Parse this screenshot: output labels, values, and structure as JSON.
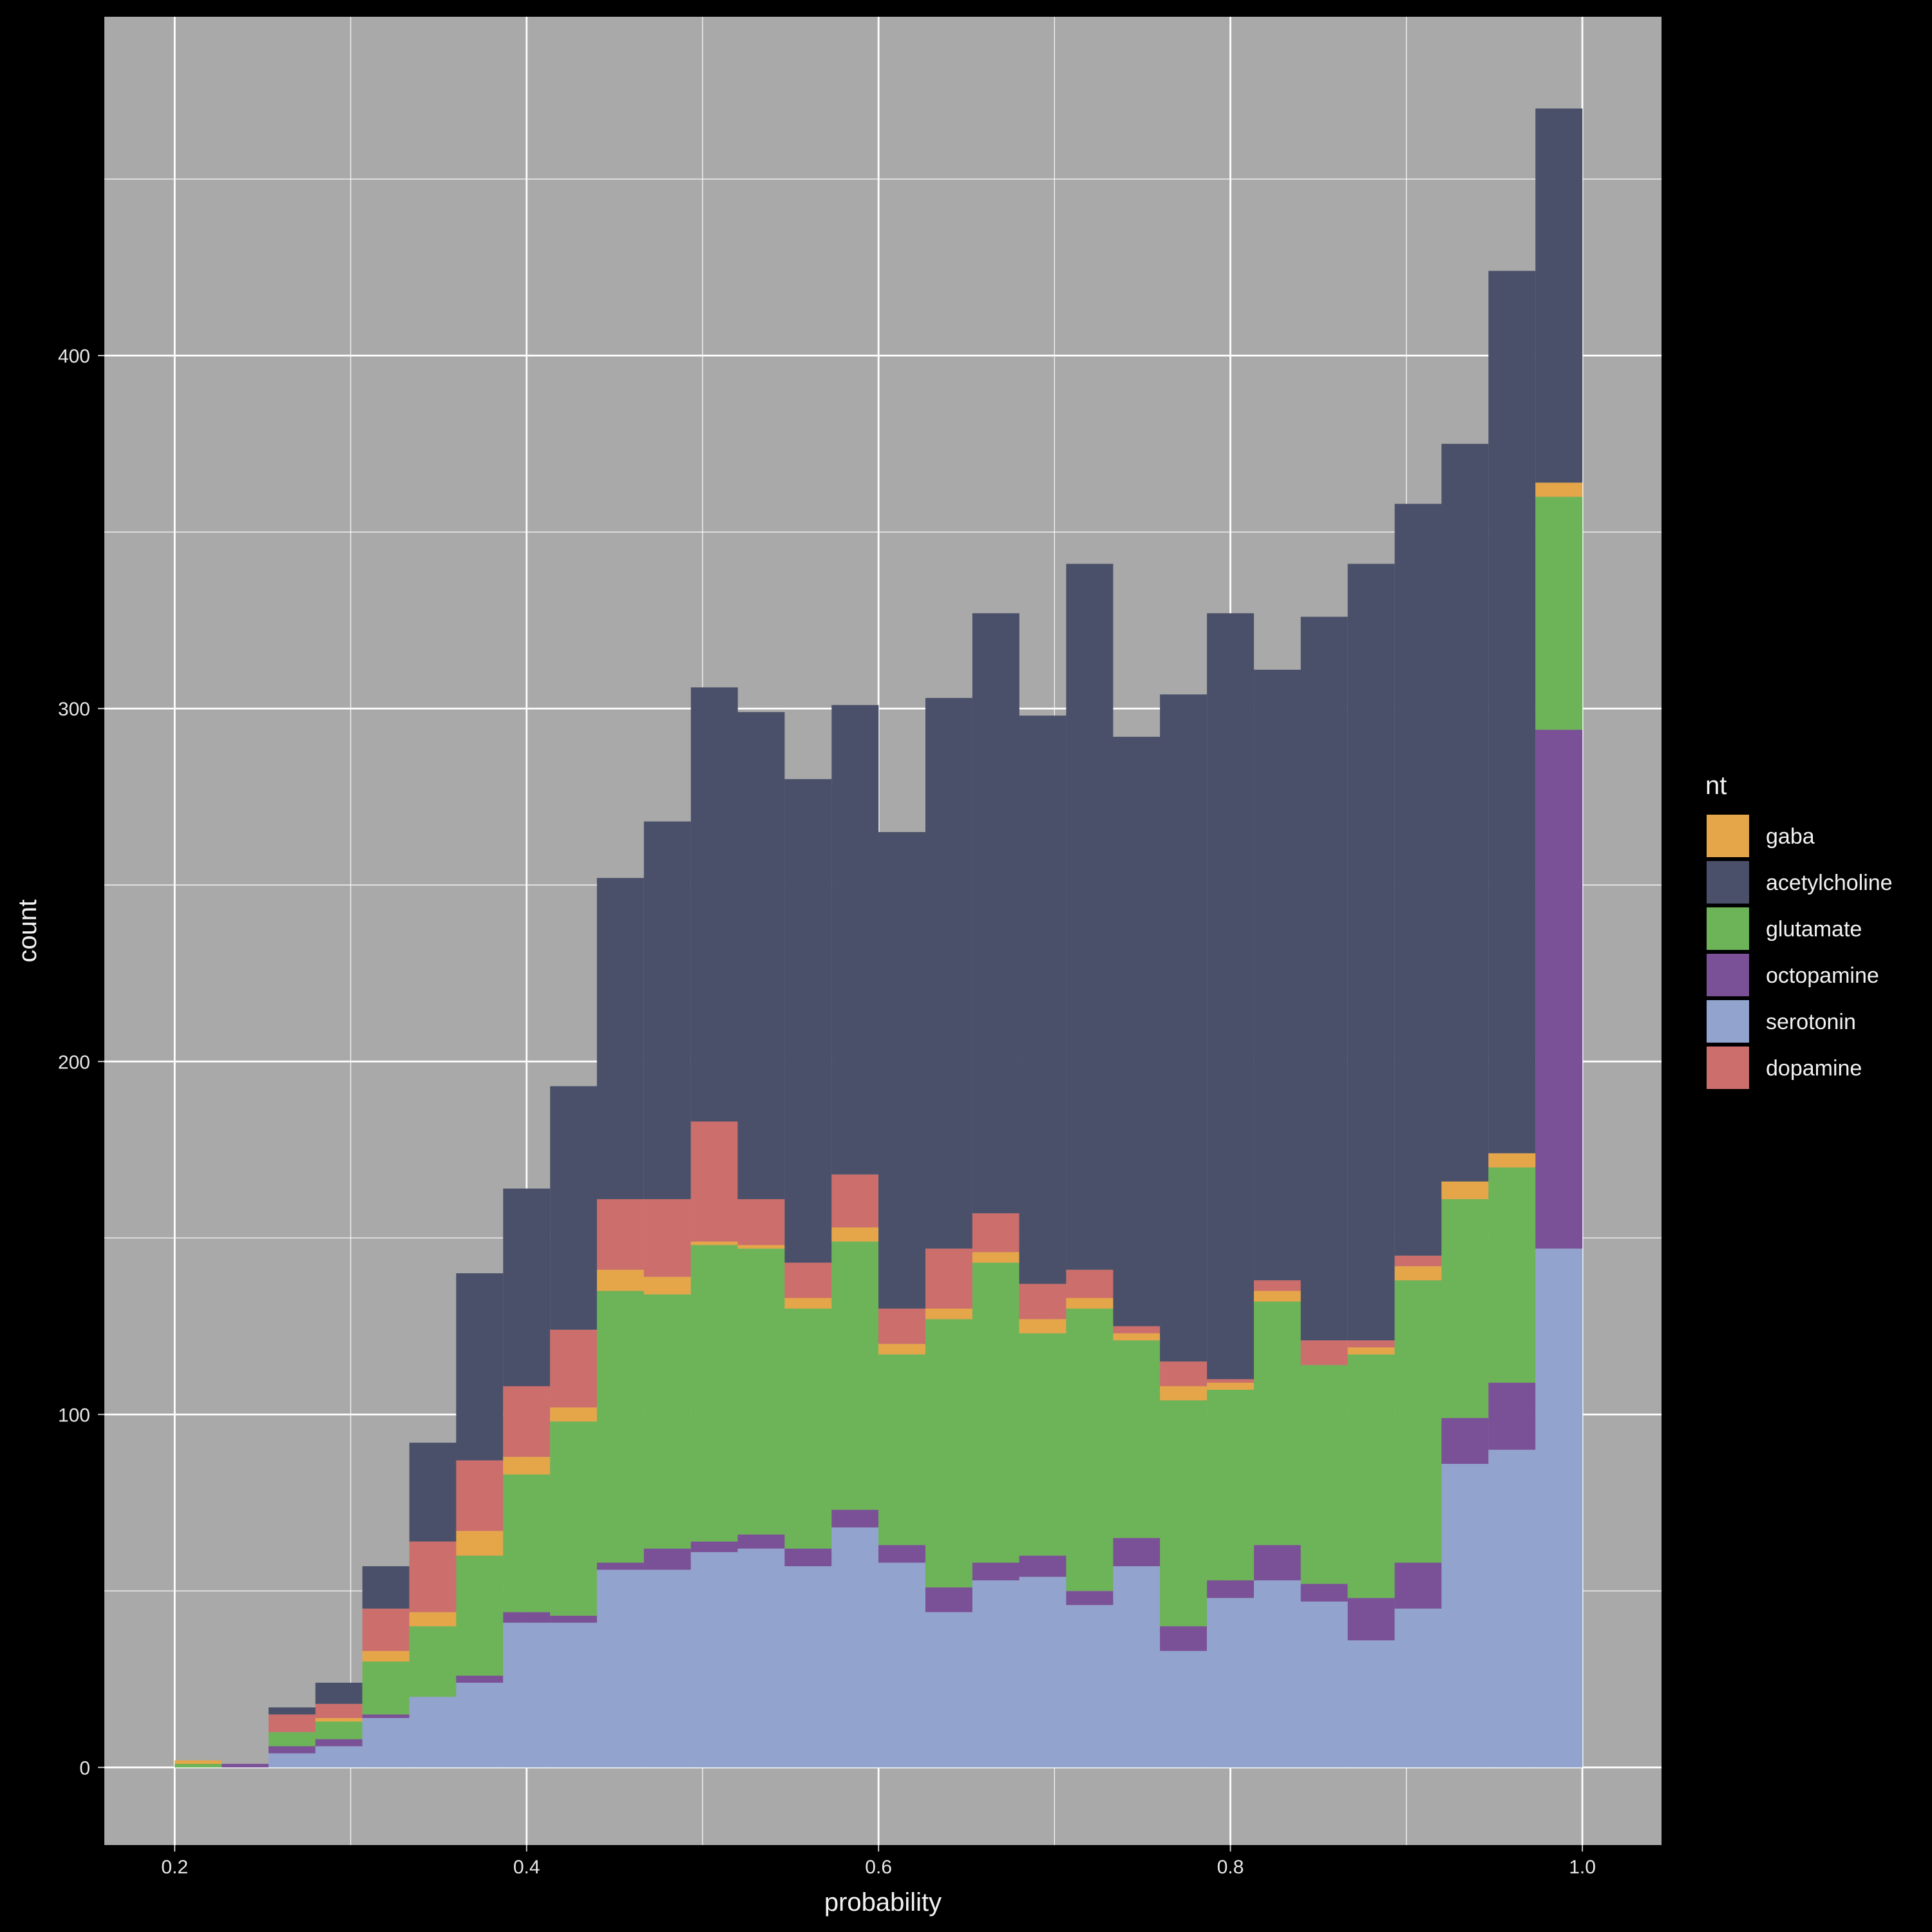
{
  "chart_data": {
    "type": "bar",
    "stacked": true,
    "title": "",
    "xlabel": "probability",
    "ylabel": "count",
    "xlim": [
      0.16,
      1.045
    ],
    "ylim": [
      -22,
      496
    ],
    "x_ticks": [
      0.2,
      0.4,
      0.6,
      0.8,
      1.0
    ],
    "x_tick_labels": [
      "0.2",
      "0.4",
      "0.6",
      "0.8",
      "1.0"
    ],
    "y_ticks": [
      0,
      100,
      200,
      300,
      400
    ],
    "y_tick_labels": [
      "0",
      "100",
      "200",
      "300",
      "400"
    ],
    "grid": true,
    "background": "#a9a9a9",
    "legend": {
      "title": "nt",
      "position": "right"
    },
    "bin_width": 0.0267,
    "x": [
      0.2133,
      0.24,
      0.2667,
      0.2933,
      0.32,
      0.3467,
      0.3733,
      0.4,
      0.4267,
      0.4533,
      0.48,
      0.5067,
      0.5333,
      0.56,
      0.5867,
      0.6133,
      0.64,
      0.6667,
      0.6933,
      0.72,
      0.7467,
      0.7733,
      0.8,
      0.8267,
      0.8533,
      0.88,
      0.9067,
      0.9333,
      0.96,
      0.9867
    ],
    "series": [
      {
        "name": "serotonin",
        "color": "#92a3ce",
        "values": [
          0,
          0,
          4,
          6,
          14,
          20,
          24,
          41,
          41,
          56,
          56,
          61,
          62,
          57,
          68,
          58,
          44,
          53,
          54,
          46,
          57,
          33,
          48,
          53,
          47,
          36,
          45,
          86,
          90,
          147
        ]
      },
      {
        "name": "octopamine",
        "color": "#7a5096",
        "values": [
          0,
          1,
          2,
          2,
          1,
          0,
          2,
          3,
          2,
          2,
          6,
          3,
          4,
          5,
          5,
          5,
          7,
          5,
          6,
          4,
          8,
          7,
          5,
          10,
          5,
          12,
          13,
          13,
          19,
          147
        ]
      },
      {
        "name": "glutamate",
        "color": "#6db358",
        "values": [
          1,
          0,
          4,
          5,
          15,
          20,
          34,
          39,
          55,
          77,
          72,
          84,
          81,
          68,
          76,
          54,
          76,
          85,
          63,
          80,
          56,
          64,
          54,
          69,
          62,
          69,
          80,
          62,
          61,
          66
        ]
      },
      {
        "name": "gaba",
        "color": "#e5a64a",
        "values": [
          1,
          0,
          0,
          1,
          3,
          4,
          7,
          5,
          4,
          6,
          5,
          1,
          1,
          3,
          4,
          3,
          3,
          3,
          4,
          3,
          2,
          4,
          2,
          3,
          0,
          2,
          4,
          5,
          4,
          4
        ]
      },
      {
        "name": "dopamine",
        "color": "#cc6e6b",
        "values": [
          0,
          0,
          5,
          4,
          12,
          20,
          20,
          20,
          22,
          20,
          22,
          34,
          13,
          10,
          15,
          10,
          17,
          11,
          10,
          8,
          2,
          7,
          1,
          3,
          7,
          2,
          3,
          0,
          0,
          0
        ]
      },
      {
        "name": "acetylcholine",
        "color": "#4a5069",
        "values": [
          0,
          0,
          2,
          6,
          12,
          28,
          53,
          56,
          69,
          91,
          107,
          123,
          138,
          137,
          133,
          135,
          156,
          170,
          161,
          200,
          167,
          189,
          217,
          173,
          205,
          220,
          213,
          209,
          250,
          106
        ]
      }
    ],
    "legend_order": [
      "gaba",
      "acetylcholine",
      "glutamate",
      "octopamine",
      "serotonin",
      "dopamine"
    ]
  }
}
